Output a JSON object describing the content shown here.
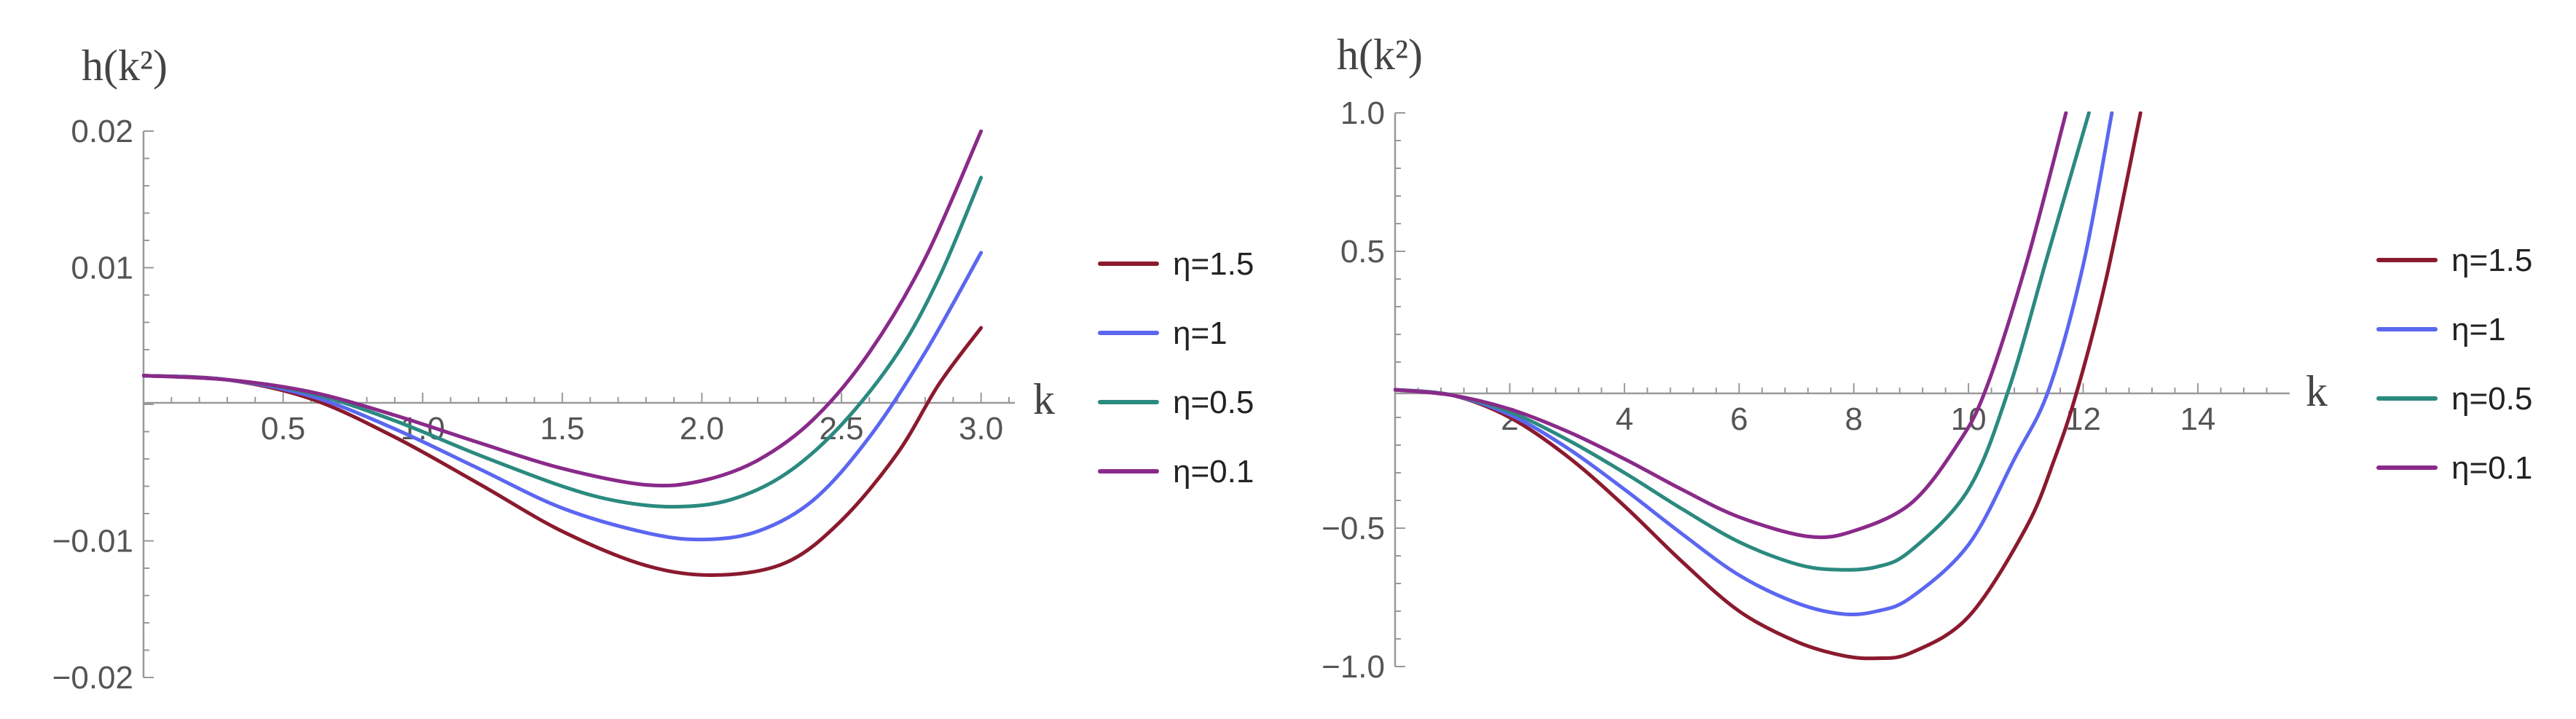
{
  "chart_data": [
    {
      "type": "line",
      "xlabel": "k",
      "ylabel": "h(k²)",
      "xlim": [
        0,
        3.1
      ],
      "ylim": [
        -0.02,
        0.02
      ],
      "x_ticks": [
        {
          "value": 0.5,
          "label": "0.5"
        },
        {
          "value": 1.0,
          "label": "1.0"
        },
        {
          "value": 1.5,
          "label": "1.5"
        },
        {
          "value": 2.0,
          "label": "2.0"
        },
        {
          "value": 2.5,
          "label": "2.5"
        },
        {
          "value": 3.0,
          "label": "3.0"
        }
      ],
      "y_ticks": [
        {
          "value": 0.02,
          "label": "0.02"
        },
        {
          "value": 0.01,
          "label": "0.01"
        },
        {
          "value": -0.01,
          "label": "−0.01"
        },
        {
          "value": -0.02,
          "label": "−0.02"
        }
      ],
      "legend_position": "right",
      "grid": false,
      "series": [
        {
          "name": "η=1.5",
          "color": "#8b1a2e",
          "points": [
            [
              0,
              0.0021
            ],
            [
              0.3,
              0.0018
            ],
            [
              0.6,
              0.0004
            ],
            [
              0.9,
              -0.0024
            ],
            [
              1.2,
              -0.0058
            ],
            [
              1.5,
              -0.0093
            ],
            [
              1.8,
              -0.0118
            ],
            [
              2.05,
              -0.0125
            ],
            [
              2.3,
              -0.0116
            ],
            [
              2.5,
              -0.0085
            ],
            [
              2.7,
              -0.0036
            ],
            [
              2.85,
              0.0015
            ],
            [
              3.0,
              0.0056
            ]
          ]
        },
        {
          "name": "η=1",
          "color": "#5b67f0",
          "points": [
            [
              0,
              0.0021
            ],
            [
              0.3,
              0.0018
            ],
            [
              0.6,
              0.0006
            ],
            [
              0.9,
              -0.0018
            ],
            [
              1.2,
              -0.0047
            ],
            [
              1.5,
              -0.0076
            ],
            [
              1.8,
              -0.0094
            ],
            [
              2.0,
              -0.0099
            ],
            [
              2.2,
              -0.0093
            ],
            [
              2.4,
              -0.007
            ],
            [
              2.6,
              -0.0024
            ],
            [
              2.8,
              0.0038
            ],
            [
              3.0,
              0.0111
            ]
          ]
        },
        {
          "name": "η=0.5",
          "color": "#2b8a80",
          "points": [
            [
              0,
              0.0021
            ],
            [
              0.3,
              0.0018
            ],
            [
              0.6,
              0.0008
            ],
            [
              0.9,
              -0.0012
            ],
            [
              1.2,
              -0.0037
            ],
            [
              1.5,
              -0.006
            ],
            [
              1.7,
              -0.0071
            ],
            [
              1.9,
              -0.0075
            ],
            [
              2.1,
              -0.007
            ],
            [
              2.3,
              -0.0051
            ],
            [
              2.5,
              -0.0015
            ],
            [
              2.7,
              0.0037
            ],
            [
              2.85,
              0.0093
            ],
            [
              3.0,
              0.0166
            ]
          ]
        },
        {
          "name": "η=0.1",
          "color": "#8a2a8a",
          "points": [
            [
              0,
              0.0021
            ],
            [
              0.3,
              0.0018
            ],
            [
              0.6,
              0.0009
            ],
            [
              0.9,
              -0.0008
            ],
            [
              1.2,
              -0.0028
            ],
            [
              1.5,
              -0.0047
            ],
            [
              1.8,
              -0.0059
            ],
            [
              2.0,
              -0.0056
            ],
            [
              2.2,
              -0.0041
            ],
            [
              2.4,
              -0.0011
            ],
            [
              2.6,
              0.0038
            ],
            [
              2.8,
              0.0107
            ],
            [
              3.0,
              0.02
            ]
          ]
        }
      ]
    },
    {
      "type": "line",
      "xlabel": "k",
      "ylabel": "h(k²)",
      "xlim": [
        0,
        15.5
      ],
      "ylim": [
        -1.0,
        1.0
      ],
      "x_ticks": [
        {
          "value": 2,
          "label": "2"
        },
        {
          "value": 4,
          "label": "4"
        },
        {
          "value": 6,
          "label": "6"
        },
        {
          "value": 8,
          "label": "8"
        },
        {
          "value": 10,
          "label": "10"
        },
        {
          "value": 12,
          "label": "12"
        },
        {
          "value": 14,
          "label": "14"
        }
      ],
      "y_ticks": [
        {
          "value": 1.0,
          "label": "1.0"
        },
        {
          "value": 0.5,
          "label": "0.5"
        },
        {
          "value": -0.5,
          "label": "−0.5"
        },
        {
          "value": -1.0,
          "label": "−1.0"
        }
      ],
      "legend_position": "right",
      "grid": false,
      "series": [
        {
          "name": "η=1.5",
          "color": "#8b1a2e",
          "points": [
            [
              0,
              0
            ],
            [
              1,
              -0.02
            ],
            [
              2,
              -0.1
            ],
            [
              3,
              -0.24
            ],
            [
              4,
              -0.42
            ],
            [
              5,
              -0.62
            ],
            [
              6,
              -0.8
            ],
            [
              7,
              -0.91
            ],
            [
              7.8,
              -0.96
            ],
            [
              8.4,
              -0.97
            ],
            [
              9,
              -0.95
            ],
            [
              10,
              -0.82
            ],
            [
              11,
              -0.5
            ],
            [
              11.5,
              -0.25
            ],
            [
              11.9,
              0.0
            ],
            [
              12.4,
              0.4
            ],
            [
              13,
              1.0
            ]
          ]
        },
        {
          "name": "η=1",
          "color": "#5b67f0",
          "points": [
            [
              0,
              0
            ],
            [
              1,
              -0.02
            ],
            [
              2,
              -0.09
            ],
            [
              3,
              -0.21
            ],
            [
              4,
              -0.36
            ],
            [
              5,
              -0.52
            ],
            [
              6,
              -0.67
            ],
            [
              7,
              -0.77
            ],
            [
              7.8,
              -0.81
            ],
            [
              8.4,
              -0.8
            ],
            [
              9,
              -0.75
            ],
            [
              10,
              -0.56
            ],
            [
              10.8,
              -0.25
            ],
            [
              11.4,
              0.0
            ],
            [
              12,
              0.45
            ],
            [
              12.5,
              1.0
            ]
          ]
        },
        {
          "name": "η=0.5",
          "color": "#2b8a80",
          "points": [
            [
              0,
              0
            ],
            [
              1,
              -0.02
            ],
            [
              2,
              -0.08
            ],
            [
              3,
              -0.18
            ],
            [
              4,
              -0.3
            ],
            [
              5,
              -0.43
            ],
            [
              6,
              -0.55
            ],
            [
              7,
              -0.63
            ],
            [
              7.7,
              -0.65
            ],
            [
              8.4,
              -0.64
            ],
            [
              9,
              -0.58
            ],
            [
              10,
              -0.36
            ],
            [
              10.7,
              0.0
            ],
            [
              11.4,
              0.5
            ],
            [
              12.1,
              1.0
            ]
          ]
        },
        {
          "name": "η=0.1",
          "color": "#8a2a8a",
          "points": [
            [
              0,
              0
            ],
            [
              1,
              -0.02
            ],
            [
              2,
              -0.07
            ],
            [
              3,
              -0.15
            ],
            [
              4,
              -0.25
            ],
            [
              5,
              -0.36
            ],
            [
              6,
              -0.46
            ],
            [
              7.2,
              -0.53
            ],
            [
              8,
              -0.51
            ],
            [
              9,
              -0.41
            ],
            [
              9.8,
              -0.2
            ],
            [
              10.3,
              0.0
            ],
            [
              11,
              0.45
            ],
            [
              11.7,
              1.0
            ]
          ]
        }
      ]
    }
  ]
}
